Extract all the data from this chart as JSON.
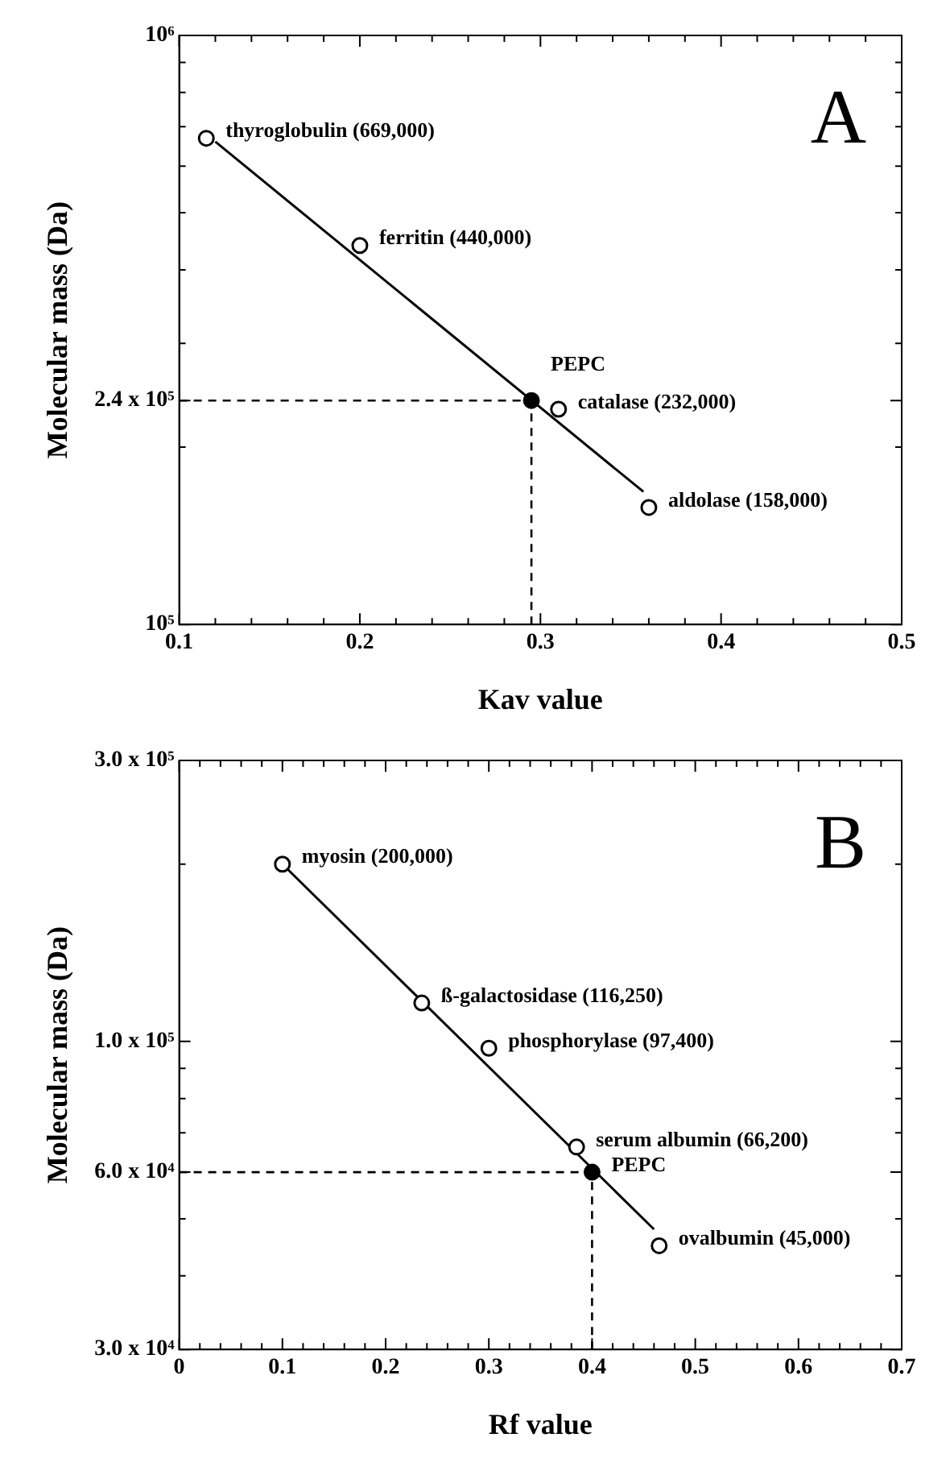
{
  "chart_data": [
    {
      "type": "scatter",
      "xlabel": "Kav value",
      "ylabel": "Molecular mass (Da)",
      "log": "y",
      "grid": false,
      "legend": false,
      "marker": "circle",
      "xlim": [
        0.1,
        0.5
      ],
      "xticks": [
        0.1,
        {
          "value": 0.12,
          "label": null
        },
        {
          "value": 0.14,
          "label": null
        },
        {
          "value": 0.16,
          "label": null
        },
        {
          "value": 0.18,
          "label": null
        },
        0.2,
        {
          "value": 0.22,
          "label": null
        },
        {
          "value": 0.24,
          "label": null
        },
        {
          "value": 0.26,
          "label": null
        },
        {
          "value": 0.28,
          "label": null
        },
        0.3,
        {
          "value": 0.32,
          "label": null
        },
        {
          "value": 0.34,
          "label": null
        },
        {
          "value": 0.36,
          "label": null
        },
        {
          "value": 0.38,
          "label": null
        },
        0.4,
        {
          "value": 0.42,
          "label": null
        },
        {
          "value": 0.44,
          "label": null
        },
        {
          "value": 0.46,
          "label": null
        },
        {
          "value": 0.48,
          "label": null
        },
        0.5
      ],
      "ylim": [
        100000,
        1000000
      ],
      "yticks": [
        {
          "value": 100000,
          "label": "10⁵"
        },
        {
          "value": 200000,
          "label": null
        },
        {
          "value": 240000,
          "label": "2.4 x 10⁵"
        },
        {
          "value": 300000,
          "label": null
        },
        {
          "value": 400000,
          "label": null
        },
        {
          "value": 500000,
          "label": null
        },
        {
          "value": 600000,
          "label": null
        },
        {
          "value": 700000,
          "label": null
        },
        {
          "value": 800000,
          "label": null
        },
        {
          "value": 900000,
          "label": null
        },
        {
          "value": 1000000,
          "label": "10⁶"
        }
      ],
      "series": [
        {
          "type": "line",
          "x": [
            0.12,
            0.357
          ],
          "values": [
            660000,
            168000
          ],
          "color": "#000000",
          "marker": "none"
        },
        {
          "type": "scatter",
          "x": [
            0.115,
            0.2,
            0.31,
            0.36
          ],
          "values": [
            669000,
            440000,
            232000,
            158000
          ],
          "color": "#ffffff"
        },
        {
          "type": "scatter",
          "x": [
            0.295
          ],
          "values": [
            240000
          ],
          "color": "#000000"
        }
      ],
      "ref_lines": [
        {
          "axis": "y",
          "value": 240000,
          "line_style": "dashed"
        },
        {
          "axis": "x",
          "value": 0.295,
          "line_style": "dashed"
        }
      ],
      "annotations": [
        "A",
        {
          "text": "thyroglobulin (669,000)",
          "x": 0.115,
          "y": 669000
        },
        {
          "text": "ferritin (440,000)",
          "x": 0.2,
          "y": 440000
        },
        {
          "text": "catalase (232,000)",
          "x": 0.31,
          "y": 232000
        },
        {
          "text": "aldolase (158,000)",
          "x": 0.36,
          "y": 158000
        },
        {
          "text": "PEPC",
          "x": 0.295,
          "y": 240000
        }
      ]
    },
    {
      "type": "scatter",
      "xlabel": "Rf value",
      "ylabel": "Molecular mass (Da)",
      "log": "y",
      "grid": false,
      "legend": false,
      "marker": "circle",
      "xlim": [
        0,
        0.7
      ],
      "xticks": [
        0,
        {
          "value": 0.02,
          "label": null
        },
        {
          "value": 0.04,
          "label": null
        },
        {
          "value": 0.06,
          "label": null
        },
        {
          "value": 0.08,
          "label": null
        },
        0.1,
        {
          "value": 0.12,
          "label": null
        },
        {
          "value": 0.14,
          "label": null
        },
        {
          "value": 0.16,
          "label": null
        },
        {
          "value": 0.18,
          "label": null
        },
        0.2,
        {
          "value": 0.22,
          "label": null
        },
        {
          "value": 0.24,
          "label": null
        },
        {
          "value": 0.26,
          "label": null
        },
        {
          "value": 0.28,
          "label": null
        },
        0.3,
        {
          "value": 0.32,
          "label": null
        },
        {
          "value": 0.34,
          "label": null
        },
        {
          "value": 0.36,
          "label": null
        },
        {
          "value": 0.38,
          "label": null
        },
        0.4,
        {
          "value": 0.42,
          "label": null
        },
        {
          "value": 0.44,
          "label": null
        },
        {
          "value": 0.46,
          "label": null
        },
        {
          "value": 0.48,
          "label": null
        },
        0.5,
        {
          "value": 0.52,
          "label": null
        },
        {
          "value": 0.54,
          "label": null
        },
        {
          "value": 0.56,
          "label": null
        },
        {
          "value": 0.58,
          "label": null
        },
        0.6,
        {
          "value": 0.62,
          "label": null
        },
        {
          "value": 0.64,
          "label": null
        },
        {
          "value": 0.66,
          "label": null
        },
        {
          "value": 0.68,
          "label": null
        },
        0.7
      ],
      "ylim": [
        30000,
        300000
      ],
      "yticks": [
        {
          "value": 30000,
          "label": "3.0 x 10⁴"
        },
        {
          "value": 40000,
          "label": null
        },
        {
          "value": 50000,
          "label": null
        },
        {
          "value": 60000,
          "label": "6.0 x 10⁴"
        },
        {
          "value": 70000,
          "label": null
        },
        {
          "value": 80000,
          "label": null
        },
        {
          "value": 90000,
          "label": null
        },
        {
          "value": 100000,
          "label": "1.0 x 10⁵"
        },
        {
          "value": 200000,
          "label": null
        },
        {
          "value": 300000,
          "label": "3.0 x 10⁵"
        }
      ],
      "series": [
        {
          "type": "line",
          "x": [
            0.1,
            0.46
          ],
          "values": [
            200000,
            48000
          ],
          "color": "#000000",
          "marker": "none"
        },
        {
          "type": "scatter",
          "x": [
            0.1,
            0.235,
            0.3,
            0.385,
            0.465
          ],
          "values": [
            200000,
            116250,
            97400,
            66200,
            45000
          ],
          "color": "#ffffff"
        },
        {
          "type": "scatter",
          "x": [
            0.4
          ],
          "values": [
            60000
          ],
          "color": "#000000"
        }
      ],
      "ref_lines": [
        {
          "axis": "y",
          "value": 60000,
          "line_style": "dashed"
        },
        {
          "axis": "x",
          "value": 0.4,
          "line_style": "dashed"
        }
      ],
      "annotations": [
        "B",
        {
          "text": "myosin (200,000)",
          "x": 0.1,
          "y": 200000
        },
        {
          "text": "ß-galactosidase (116,250)",
          "x": 0.235,
          "y": 116250
        },
        {
          "text": "phosphorylase (97,400)",
          "x": 0.3,
          "y": 97400
        },
        {
          "text": "serum albumin (66,200)",
          "x": 0.385,
          "y": 66200
        },
        {
          "text": "ovalbumin (45,000)",
          "x": 0.465,
          "y": 45000
        },
        {
          "text": "PEPC",
          "x": 0.4,
          "y": 60000
        }
      ]
    }
  ]
}
